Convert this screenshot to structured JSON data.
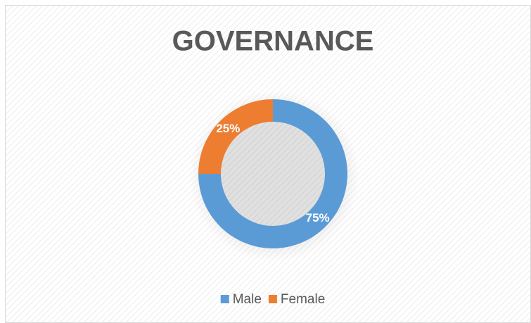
{
  "chart_data": {
    "type": "donut",
    "title": "GOVERNANCE",
    "categories": [
      "Male",
      "Female"
    ],
    "values": [
      75,
      25
    ],
    "value_labels": [
      "75%",
      "25%"
    ],
    "colors": [
      "#5b9bd5",
      "#ed7d31"
    ],
    "legend": "bottom"
  }
}
